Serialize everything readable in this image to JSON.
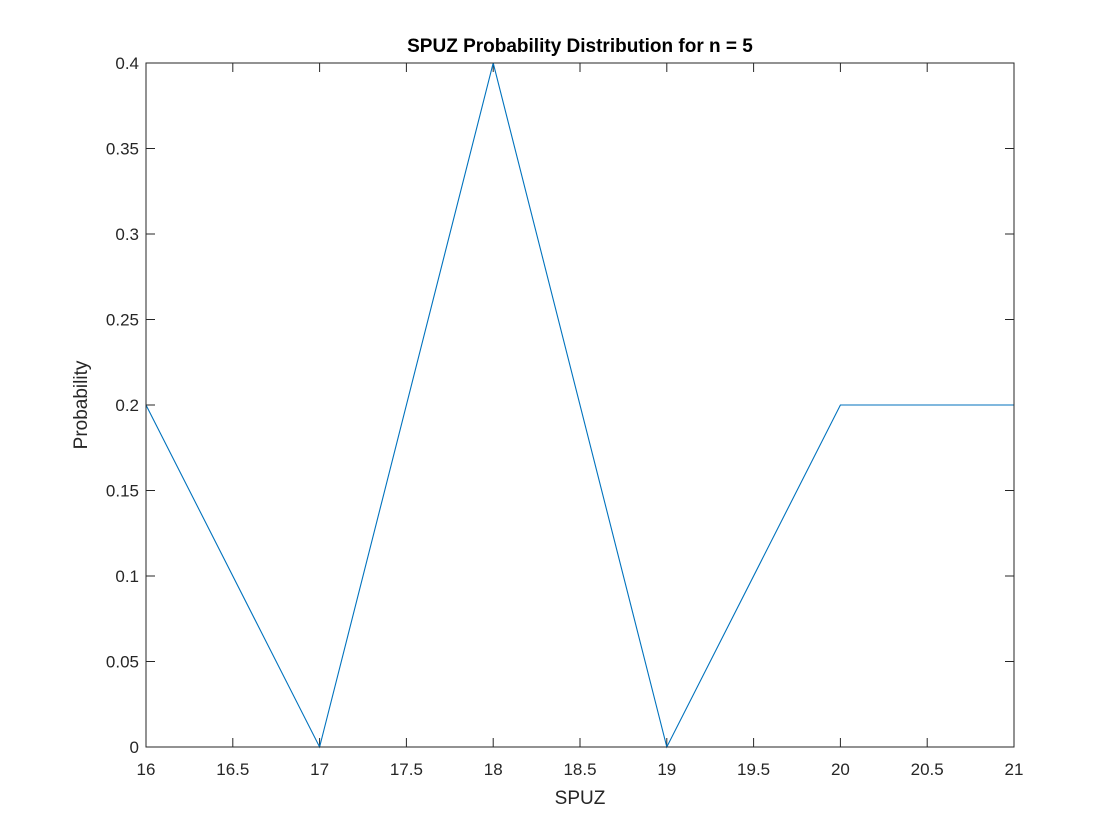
{
  "chart_data": {
    "type": "line",
    "title": "SPUZ Probability Distribution for n = 5",
    "xlabel": "SPUZ",
    "ylabel": "Probability",
    "xlim": [
      16,
      21
    ],
    "ylim": [
      0,
      0.4
    ],
    "xticks": [
      "16",
      "16.5",
      "17",
      "17.5",
      "18",
      "18.5",
      "19",
      "19.5",
      "20",
      "20.5",
      "21"
    ],
    "yticks": [
      "0",
      "0.05",
      "0.1",
      "0.15",
      "0.2",
      "0.25",
      "0.3",
      "0.35",
      "0.4"
    ],
    "grid": false,
    "legend": "none",
    "line_color": "#0072BD",
    "axis_color": "#262626",
    "series": [
      {
        "x": [
          16,
          17,
          18,
          19,
          20,
          21
        ],
        "y": [
          0.2,
          0,
          0.4,
          0,
          0.2,
          0.2
        ]
      }
    ]
  }
}
